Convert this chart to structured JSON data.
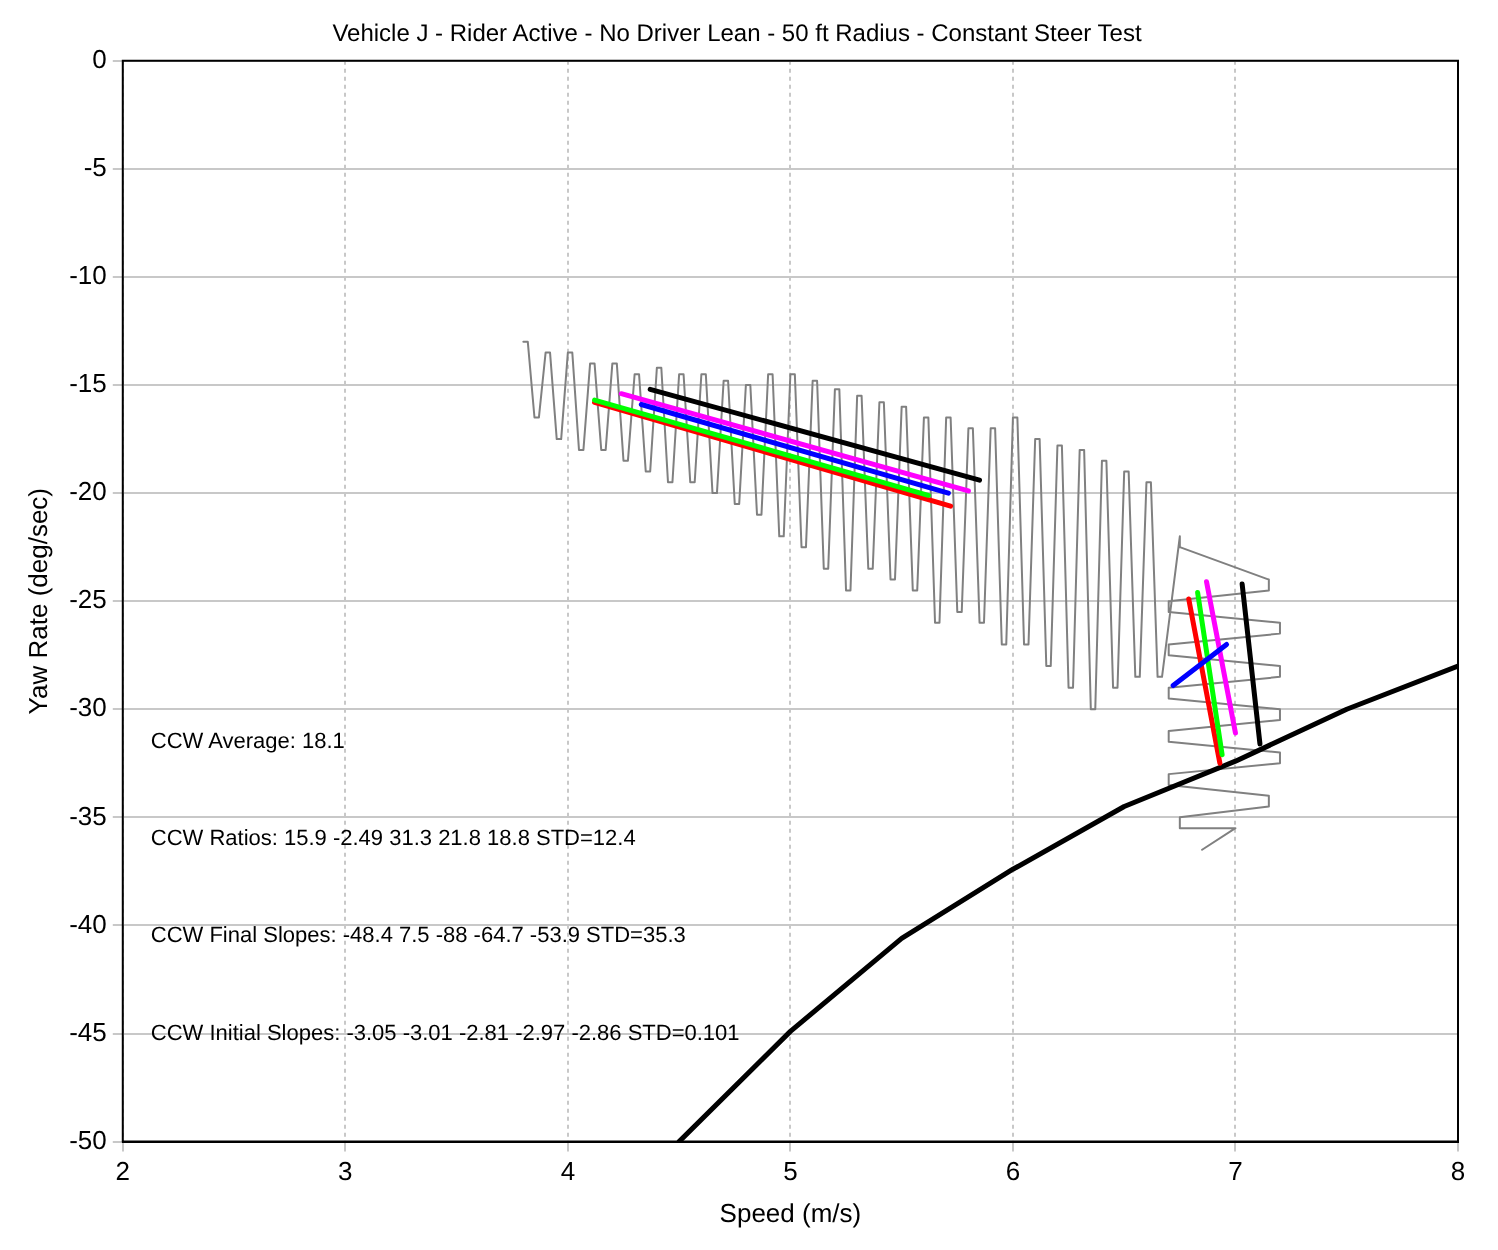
{
  "chart_data": {
    "type": "line",
    "title": "Vehicle J - Rider Active - No Driver Lean - 50 ft Radius - Constant Steer Test",
    "xlabel": "Speed (m/s)",
    "ylabel": "Yaw Rate (deg/sec)",
    "xlim": [
      2,
      8
    ],
    "xticks": [
      2,
      3,
      4,
      5,
      6,
      7,
      8
    ],
    "ylim": [
      -50,
      0
    ],
    "yticks": [
      -50,
      -45,
      -40,
      -35,
      -30,
      -25,
      -20,
      -15,
      -10,
      -5,
      0
    ],
    "grid": true,
    "legend": false,
    "annotations": [
      "CCW Average: 18.1",
      "CCW Ratios: 15.9 -2.49 31.3 21.8 18.8 STD=12.4",
      "CCW Final Slopes: -48.4 7.5 -88 -64.7 -53.9 STD=35.3",
      "CCW Initial Slopes: -3.05 -3.01 -2.81 -2.97 -2.86 STD=0.101"
    ],
    "series": [
      {
        "color": "#808080",
        "x": [
          3.8,
          3.82,
          3.85,
          3.87,
          3.9,
          3.92,
          3.95,
          3.97,
          4.0,
          4.02,
          4.05,
          4.07,
          4.1,
          4.12,
          4.15,
          4.17,
          4.2,
          4.22,
          4.25,
          4.27,
          4.3,
          4.32,
          4.35,
          4.37,
          4.4,
          4.42,
          4.45,
          4.47,
          4.5,
          4.52,
          4.55,
          4.57,
          4.6,
          4.62,
          4.65,
          4.67,
          4.7,
          4.72,
          4.75,
          4.77,
          4.8,
          4.82,
          4.85,
          4.87,
          4.9,
          4.92,
          4.95,
          4.97,
          5.0,
          5.02,
          5.05,
          5.07,
          5.1,
          5.12,
          5.15,
          5.17,
          5.2,
          5.22,
          5.25,
          5.27,
          5.3,
          5.32,
          5.35,
          5.37,
          5.4,
          5.42,
          5.45,
          5.47,
          5.5,
          5.52,
          5.55,
          5.57,
          5.6,
          5.62,
          5.65,
          5.67,
          5.7,
          5.72,
          5.75,
          5.77,
          5.8,
          5.82,
          5.85,
          5.87,
          5.9,
          5.92,
          5.95,
          5.97,
          6.0,
          6.02,
          6.05,
          6.07,
          6.1,
          6.12,
          6.15,
          6.17,
          6.2,
          6.22,
          6.25,
          6.27,
          6.3,
          6.32,
          6.35,
          6.37,
          6.4,
          6.42,
          6.45,
          6.47,
          6.5,
          6.52,
          6.55,
          6.57,
          6.6,
          6.62,
          6.65,
          6.67,
          6.75,
          6.75,
          7.15,
          7.15,
          6.7,
          6.7,
          7.2,
          7.2,
          6.7,
          6.7,
          7.2,
          7.2,
          6.7,
          6.7,
          7.2,
          7.2,
          6.7,
          6.7,
          7.2,
          7.2,
          6.7,
          6.7,
          7.15,
          7.15,
          6.75,
          6.75,
          7.0,
          6.85
        ],
        "values": [
          -13,
          -13,
          -16.5,
          -16.5,
          -13.5,
          -13.5,
          -17.5,
          -17.5,
          -13.5,
          -13.5,
          -18,
          -18,
          -14,
          -14,
          -18,
          -18,
          -14,
          -14,
          -18.5,
          -18.5,
          -14.5,
          -14.5,
          -19,
          -19,
          -14.2,
          -14.2,
          -19.5,
          -19.5,
          -14.5,
          -14.5,
          -19.5,
          -19.5,
          -14.5,
          -14.5,
          -20,
          -20,
          -14.8,
          -14.8,
          -20.5,
          -20.5,
          -15,
          -15,
          -21,
          -21,
          -14.5,
          -14.5,
          -22,
          -22,
          -14.5,
          -14.5,
          -22.5,
          -22.5,
          -14.8,
          -14.8,
          -23.5,
          -23.5,
          -15.2,
          -15.2,
          -24.5,
          -24.5,
          -15.5,
          -15.5,
          -23.5,
          -23.5,
          -15.8,
          -15.8,
          -24,
          -24,
          -16,
          -16,
          -24.5,
          -24.5,
          -16.5,
          -16.5,
          -26,
          -26,
          -16.5,
          -16.5,
          -25.5,
          -25.5,
          -17,
          -17,
          -26,
          -26,
          -17,
          -17,
          -27,
          -27,
          -16.5,
          -16.5,
          -27,
          -27,
          -17.5,
          -17.5,
          -28,
          -28,
          -17.8,
          -17.8,
          -29,
          -29,
          -18,
          -18,
          -30,
          -30,
          -18.5,
          -18.5,
          -29,
          -29,
          -19,
          -19,
          -28.5,
          -28.5,
          -19.5,
          -19.5,
          -28.5,
          -28.5,
          -22,
          -22.5,
          -24,
          -24.5,
          -25,
          -25.5,
          -26,
          -26.5,
          -27,
          -27.5,
          -28,
          -28.5,
          -29,
          -29.5,
          -30,
          -30.5,
          -31,
          -31.5,
          -32,
          -32.5,
          -33,
          -33.5,
          -34,
          -34.5,
          -35,
          -35.5,
          -35.5,
          -36.5
        ]
      },
      {
        "color": "#000000",
        "x": [
          4.5,
          5.0,
          5.5,
          6.0,
          6.5,
          7.0,
          7.5,
          8.0
        ],
        "values": [
          -50,
          -44.9,
          -40.6,
          -37.4,
          -34.5,
          -32.4,
          -30,
          -28
        ]
      },
      {
        "color": "#000000",
        "x": [
          4.37,
          5.85
        ],
        "values": [
          -15.2,
          -19.4
        ]
      },
      {
        "color": "#ff00ff",
        "x": [
          4.24,
          5.8
        ],
        "values": [
          -15.4,
          -19.9
        ]
      },
      {
        "color": "#0000ff",
        "x": [
          4.33,
          5.71
        ],
        "values": [
          -15.9,
          -20
        ]
      },
      {
        "color": "#ff0000",
        "x": [
          4.12,
          5.72
        ],
        "values": [
          -15.8,
          -20.6
        ]
      },
      {
        "color": "#00ff00",
        "x": [
          4.12,
          5.62
        ],
        "values": [
          -15.7,
          -20.1
        ]
      },
      {
        "color": "#ff0000",
        "x": [
          6.79,
          6.93
        ],
        "values": [
          -24.9,
          -32.5
        ]
      },
      {
        "color": "#00ff00",
        "x": [
          6.83,
          6.94
        ],
        "values": [
          -24.6,
          -32.1
        ]
      },
      {
        "color": "#ff00ff",
        "x": [
          6.87,
          7.0
        ],
        "values": [
          -24.1,
          -31.1
        ]
      },
      {
        "color": "#0000ff",
        "x": [
          6.72,
          6.96
        ],
        "values": [
          -28.9,
          -27
        ]
      },
      {
        "color": "#000000",
        "x": [
          7.03,
          7.11
        ],
        "values": [
          -24.2,
          -31.6
        ]
      }
    ]
  }
}
